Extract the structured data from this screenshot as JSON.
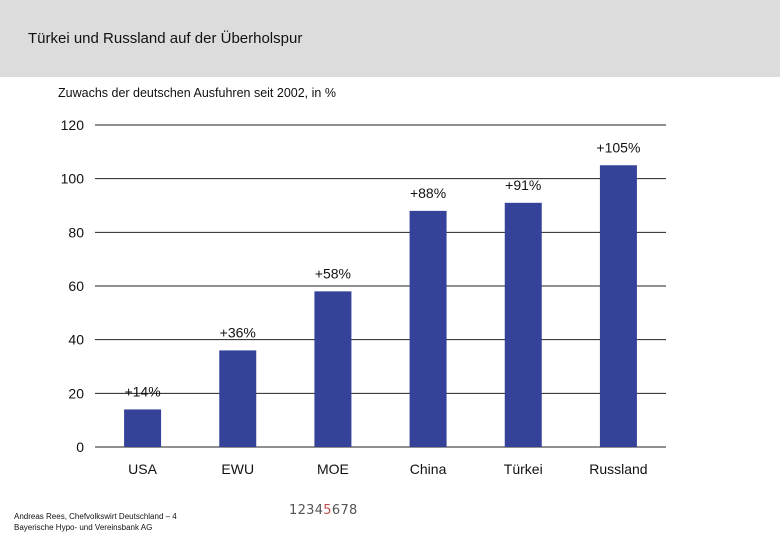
{
  "header": {
    "title": "Türkei und Russland auf der Überholspur"
  },
  "chart_data": {
    "type": "bar",
    "title": "Zuwachs der deutschen Ausfuhren seit 2002, in %",
    "categories": [
      "USA",
      "EWU",
      "MOE",
      "China",
      "Türkei",
      "Russland"
    ],
    "values": [
      14,
      36,
      58,
      88,
      91,
      105
    ],
    "data_labels": [
      "+14%",
      "+36%",
      "+58%",
      "+88%",
      "+91%",
      "+105%"
    ],
    "ylim": [
      0,
      120
    ],
    "yticks": [
      0,
      20,
      40,
      60,
      80,
      100,
      120
    ],
    "grid": true,
    "bar_color": "#344399"
  },
  "footer": {
    "line1": "Andreas Rees, Chefvolkswirt Deutschland – 4",
    "line2": "Bayerische Hypo- und Vereinsbank AG"
  },
  "pager": {
    "before": "1234",
    "current": "5",
    "after": "678"
  }
}
